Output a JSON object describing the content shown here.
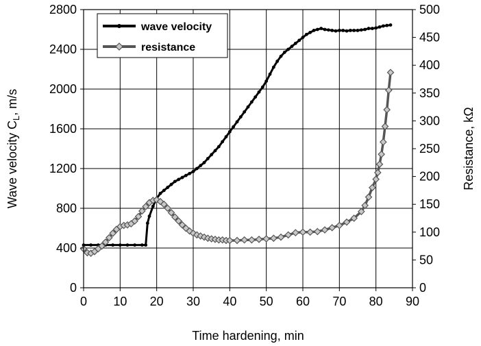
{
  "chart_data": {
    "type": "line",
    "title": "",
    "xlabel": "Time hardening, min",
    "ylabel_left": "Wave velocity C",
    "ylabel_left_sub": "L",
    "ylabel_left_unit": ", m/s",
    "ylabel_right": "Resistance, kΩ",
    "xlim": [
      0,
      90
    ],
    "ylim_left": [
      0,
      2800
    ],
    "ylim_right": [
      0,
      500
    ],
    "xticks": [
      "0",
      "10",
      "20",
      "30",
      "40",
      "50",
      "60",
      "70",
      "80",
      "90"
    ],
    "yticks_left": [
      "0",
      "400",
      "800",
      "1200",
      "1600",
      "2000",
      "2400",
      "2800"
    ],
    "yticks_right": [
      "0",
      "50",
      "100",
      "150",
      "200",
      "250",
      "300",
      "350",
      "400",
      "450",
      "500"
    ],
    "grid": true,
    "legend_position": "top-left",
    "series": [
      {
        "name": "wave velocity",
        "axis": "left",
        "color": "#000000",
        "marker": "circle",
        "x": [
          0,
          2,
          4,
          6,
          8,
          10,
          12,
          14,
          16,
          17,
          17.5,
          18,
          19,
          20,
          21,
          22,
          23,
          24,
          25,
          26,
          27,
          28,
          29,
          30,
          31,
          32,
          33,
          34,
          35,
          36,
          37,
          38,
          39,
          40,
          41,
          42,
          43,
          44,
          45,
          46,
          47,
          48,
          49,
          50,
          51,
          52,
          53,
          54,
          55,
          56,
          57,
          58,
          59,
          60,
          61,
          62,
          63,
          64,
          65,
          66,
          67,
          68,
          69,
          70,
          71,
          72,
          73,
          74,
          75,
          76,
          77,
          78,
          79,
          80,
          81,
          82,
          83,
          84
        ],
        "y": [
          430,
          430,
          430,
          430,
          430,
          430,
          430,
          430,
          430,
          430,
          650,
          720,
          820,
          900,
          950,
          980,
          1010,
          1040,
          1070,
          1090,
          1110,
          1130,
          1150,
          1170,
          1200,
          1230,
          1260,
          1300,
          1340,
          1380,
          1420,
          1470,
          1520,
          1570,
          1620,
          1670,
          1720,
          1770,
          1820,
          1870,
          1920,
          1970,
          2020,
          2080,
          2150,
          2220,
          2280,
          2330,
          2370,
          2400,
          2430,
          2460,
          2490,
          2520,
          2550,
          2570,
          2590,
          2600,
          2610,
          2600,
          2595,
          2590,
          2585,
          2590,
          2590,
          2585,
          2590,
          2590,
          2590,
          2595,
          2600,
          2610,
          2610,
          2615,
          2625,
          2635,
          2640,
          2645
        ]
      },
      {
        "name": "resistance",
        "axis": "right",
        "color": "#555555",
        "marker": "diamond",
        "x": [
          0,
          1,
          2,
          3,
          4,
          5,
          6,
          7,
          8,
          9,
          10,
          11,
          12,
          13,
          14,
          15,
          16,
          17,
          18,
          19,
          20,
          21,
          22,
          23,
          24,
          25,
          26,
          27,
          28,
          29,
          30,
          31,
          32,
          33,
          34,
          35,
          36,
          37,
          38,
          39,
          40,
          42,
          44,
          46,
          48,
          50,
          52,
          54,
          56,
          58,
          60,
          62,
          64,
          66,
          68,
          70,
          72,
          74,
          76,
          77,
          78,
          79,
          80,
          80.5,
          81,
          81.5,
          82,
          82.5,
          83,
          83.5,
          84
        ],
        "y": [
          70,
          63,
          62,
          65,
          70,
          75,
          82,
          90,
          98,
          105,
          110,
          112,
          113,
          115,
          120,
          128,
          138,
          146,
          153,
          157,
          158,
          155,
          150,
          143,
          135,
          127,
          120,
          113,
          107,
          102,
          98,
          95,
          93,
          91,
          89,
          88,
          87,
          86,
          86,
          85,
          85,
          85,
          86,
          86,
          87,
          88,
          89,
          91,
          95,
          99,
          100,
          100,
          101,
          104,
          108,
          112,
          118,
          125,
          137,
          148,
          163,
          180,
          195,
          207,
          222,
          240,
          262,
          290,
          320,
          355,
          387
        ]
      }
    ]
  }
}
